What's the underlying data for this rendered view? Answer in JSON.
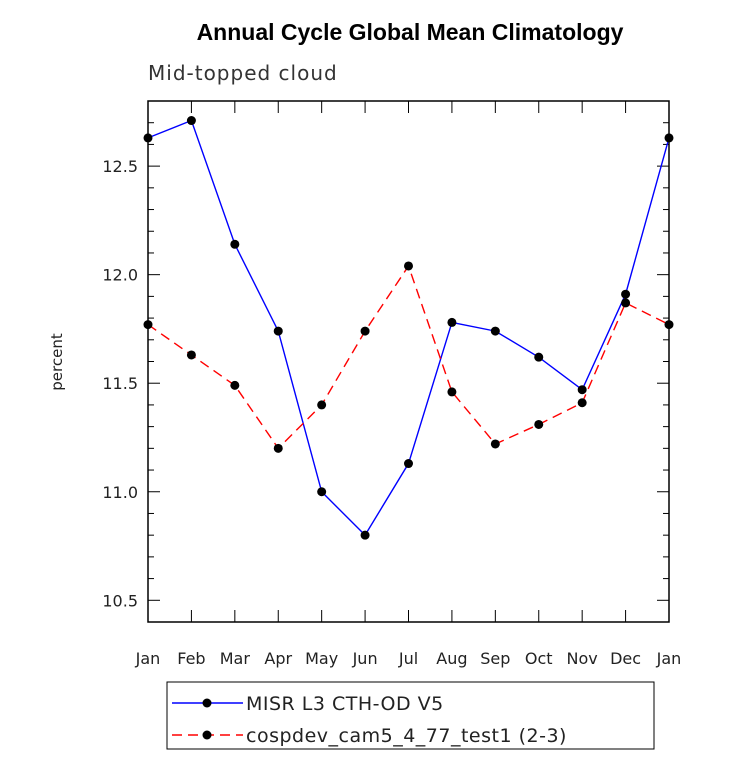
{
  "chart_data": {
    "type": "line",
    "title": "Annual Cycle Global Mean Climatology",
    "subtitle": "Mid-topped cloud",
    "xlabel": "",
    "ylabel": "percent",
    "categories": [
      "Jan",
      "Feb",
      "Mar",
      "Apr",
      "May",
      "Jun",
      "Jul",
      "Aug",
      "Sep",
      "Oct",
      "Nov",
      "Dec",
      "Jan"
    ],
    "ylim": [
      10.4,
      12.8
    ],
    "yticks": [
      10.5,
      11.0,
      11.5,
      12.0,
      12.5
    ],
    "ytick_labels": [
      "10.5",
      "11.0",
      "11.5",
      "12.0",
      "12.5"
    ],
    "series": [
      {
        "name": "MISR L3 CTH-OD V5",
        "color": "#0000ff",
        "dash": "solid",
        "values": [
          12.63,
          12.71,
          12.14,
          11.74,
          11.0,
          10.8,
          11.13,
          11.78,
          11.74,
          11.62,
          11.47,
          11.91,
          12.63
        ]
      },
      {
        "name": "cospdev_cam5_4_77_test1 (2-3)",
        "color": "#ff0000",
        "dash": "dashed",
        "values": [
          11.77,
          11.63,
          11.49,
          11.2,
          11.4,
          11.74,
          12.04,
          11.46,
          11.22,
          11.31,
          11.41,
          11.87,
          11.77
        ]
      }
    ],
    "legend_position": "bottom-center",
    "grid": false
  }
}
